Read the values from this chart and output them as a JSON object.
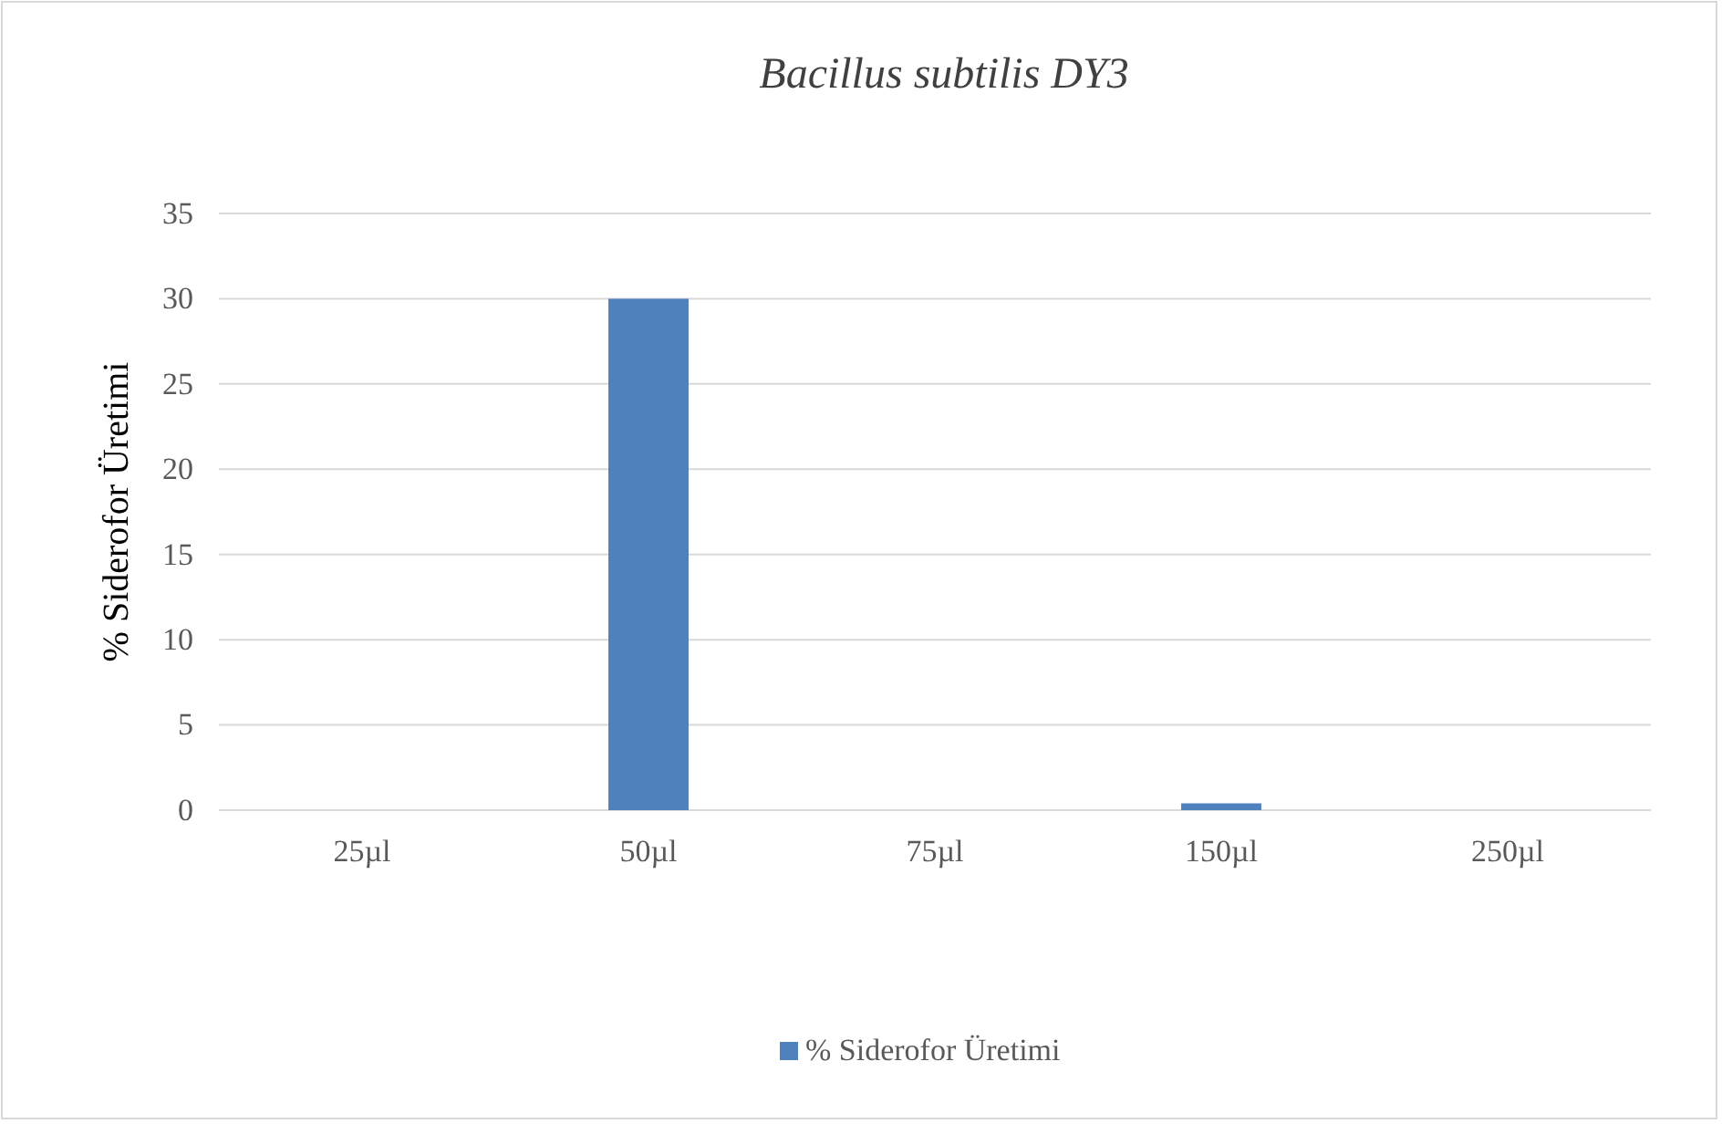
{
  "chart_data": {
    "type": "bar",
    "title": "Bacillus subtilis DY3",
    "ylabel": "% Siderofor Üretimi",
    "categories": [
      "25µl",
      "50µl",
      "75µl",
      "150µl",
      "250µl"
    ],
    "series": [
      {
        "name": "% Siderofor Üretimi",
        "color": "#4f81bd",
        "values": [
          0,
          30,
          0,
          0.4,
          0
        ]
      }
    ],
    "ylim": [
      0,
      35
    ],
    "yticks": [
      0,
      5,
      10,
      15,
      20,
      25,
      30,
      35
    ],
    "grid": "y",
    "legend": "bottom"
  }
}
